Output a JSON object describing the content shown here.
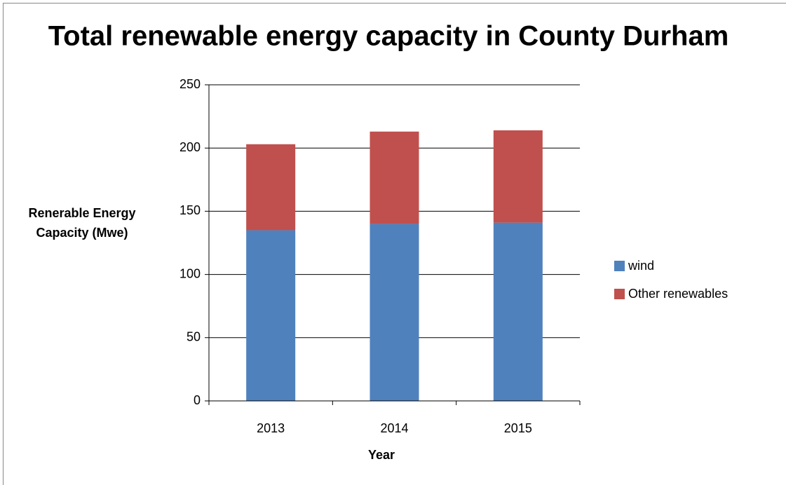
{
  "chart_data": {
    "type": "stacked_bar",
    "title": "Total renewable energy capacity in County Durham",
    "x_label": "Year",
    "y_label": "Renerable Energy Capacity (Mwe)",
    "categories": [
      "2013",
      "2014",
      "2015"
    ],
    "series": [
      {
        "name": "wind",
        "color": "#4f81bd",
        "values": [
          135,
          140,
          141
        ]
      },
      {
        "name": "Other renewables",
        "color": "#c0504d",
        "values": [
          68,
          73,
          73
        ]
      }
    ],
    "ylim": [
      0,
      250
    ],
    "yticks": [
      0,
      50,
      100,
      150,
      200,
      250
    ],
    "grid": true,
    "legend": "right"
  }
}
